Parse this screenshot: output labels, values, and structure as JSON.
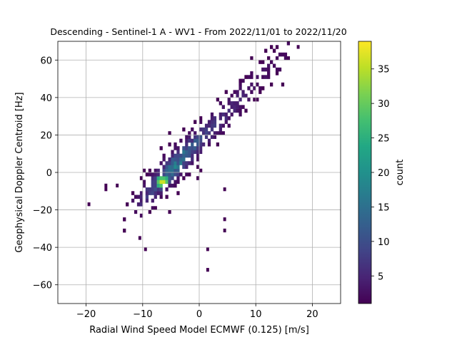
{
  "chart_data": {
    "type": "heatmap",
    "title": "Descending - Sentinel-1 A - WV1 - From 2022/11/01 to 2022/11/20",
    "xlabel": "Radial Wind Speed Model ECMWF (0.125) [m/s]",
    "ylabel": "Geophysical Doppler Centroid [Hz]",
    "xlim": [
      -25,
      25
    ],
    "ylim": [
      -70,
      70
    ],
    "xticks": [
      -20,
      -10,
      0,
      10,
      20
    ],
    "yticks": [
      -60,
      -40,
      -20,
      0,
      20,
      40,
      60
    ],
    "grid": true,
    "colorbar": {
      "label": "count",
      "colormap": "viridis",
      "range": [
        1,
        39
      ],
      "ticks": [
        5,
        10,
        15,
        20,
        25,
        30,
        35
      ]
    },
    "bin_size": {
      "x": 0.5,
      "y": 2
    },
    "density_model": {
      "description": "2D histogram of counts; dense band along a line of slope ~3.1 Hz per m/s",
      "peak": {
        "x": -6.5,
        "y": -5,
        "count": 39
      },
      "trend": {
        "slope": 3.1,
        "intercept": 17
      },
      "core_x_range": [
        -12,
        16
      ]
    },
    "outliers": [
      {
        "x": -19.5,
        "y": -17
      },
      {
        "x": -9.5,
        "y": -41
      },
      {
        "x": 1.5,
        "y": -41
      },
      {
        "x": 1.5,
        "y": -52
      },
      {
        "x": 4.5,
        "y": -31
      },
      {
        "x": 4.5,
        "y": -25
      },
      {
        "x": -16.5,
        "y": -9
      },
      {
        "x": -16.5,
        "y": -7
      },
      {
        "x": -14.5,
        "y": -7
      },
      {
        "x": 4.5,
        "y": -9
      },
      {
        "x": -10.5,
        "y": -35
      },
      {
        "x": 17.5,
        "y": 67
      }
    ]
  }
}
